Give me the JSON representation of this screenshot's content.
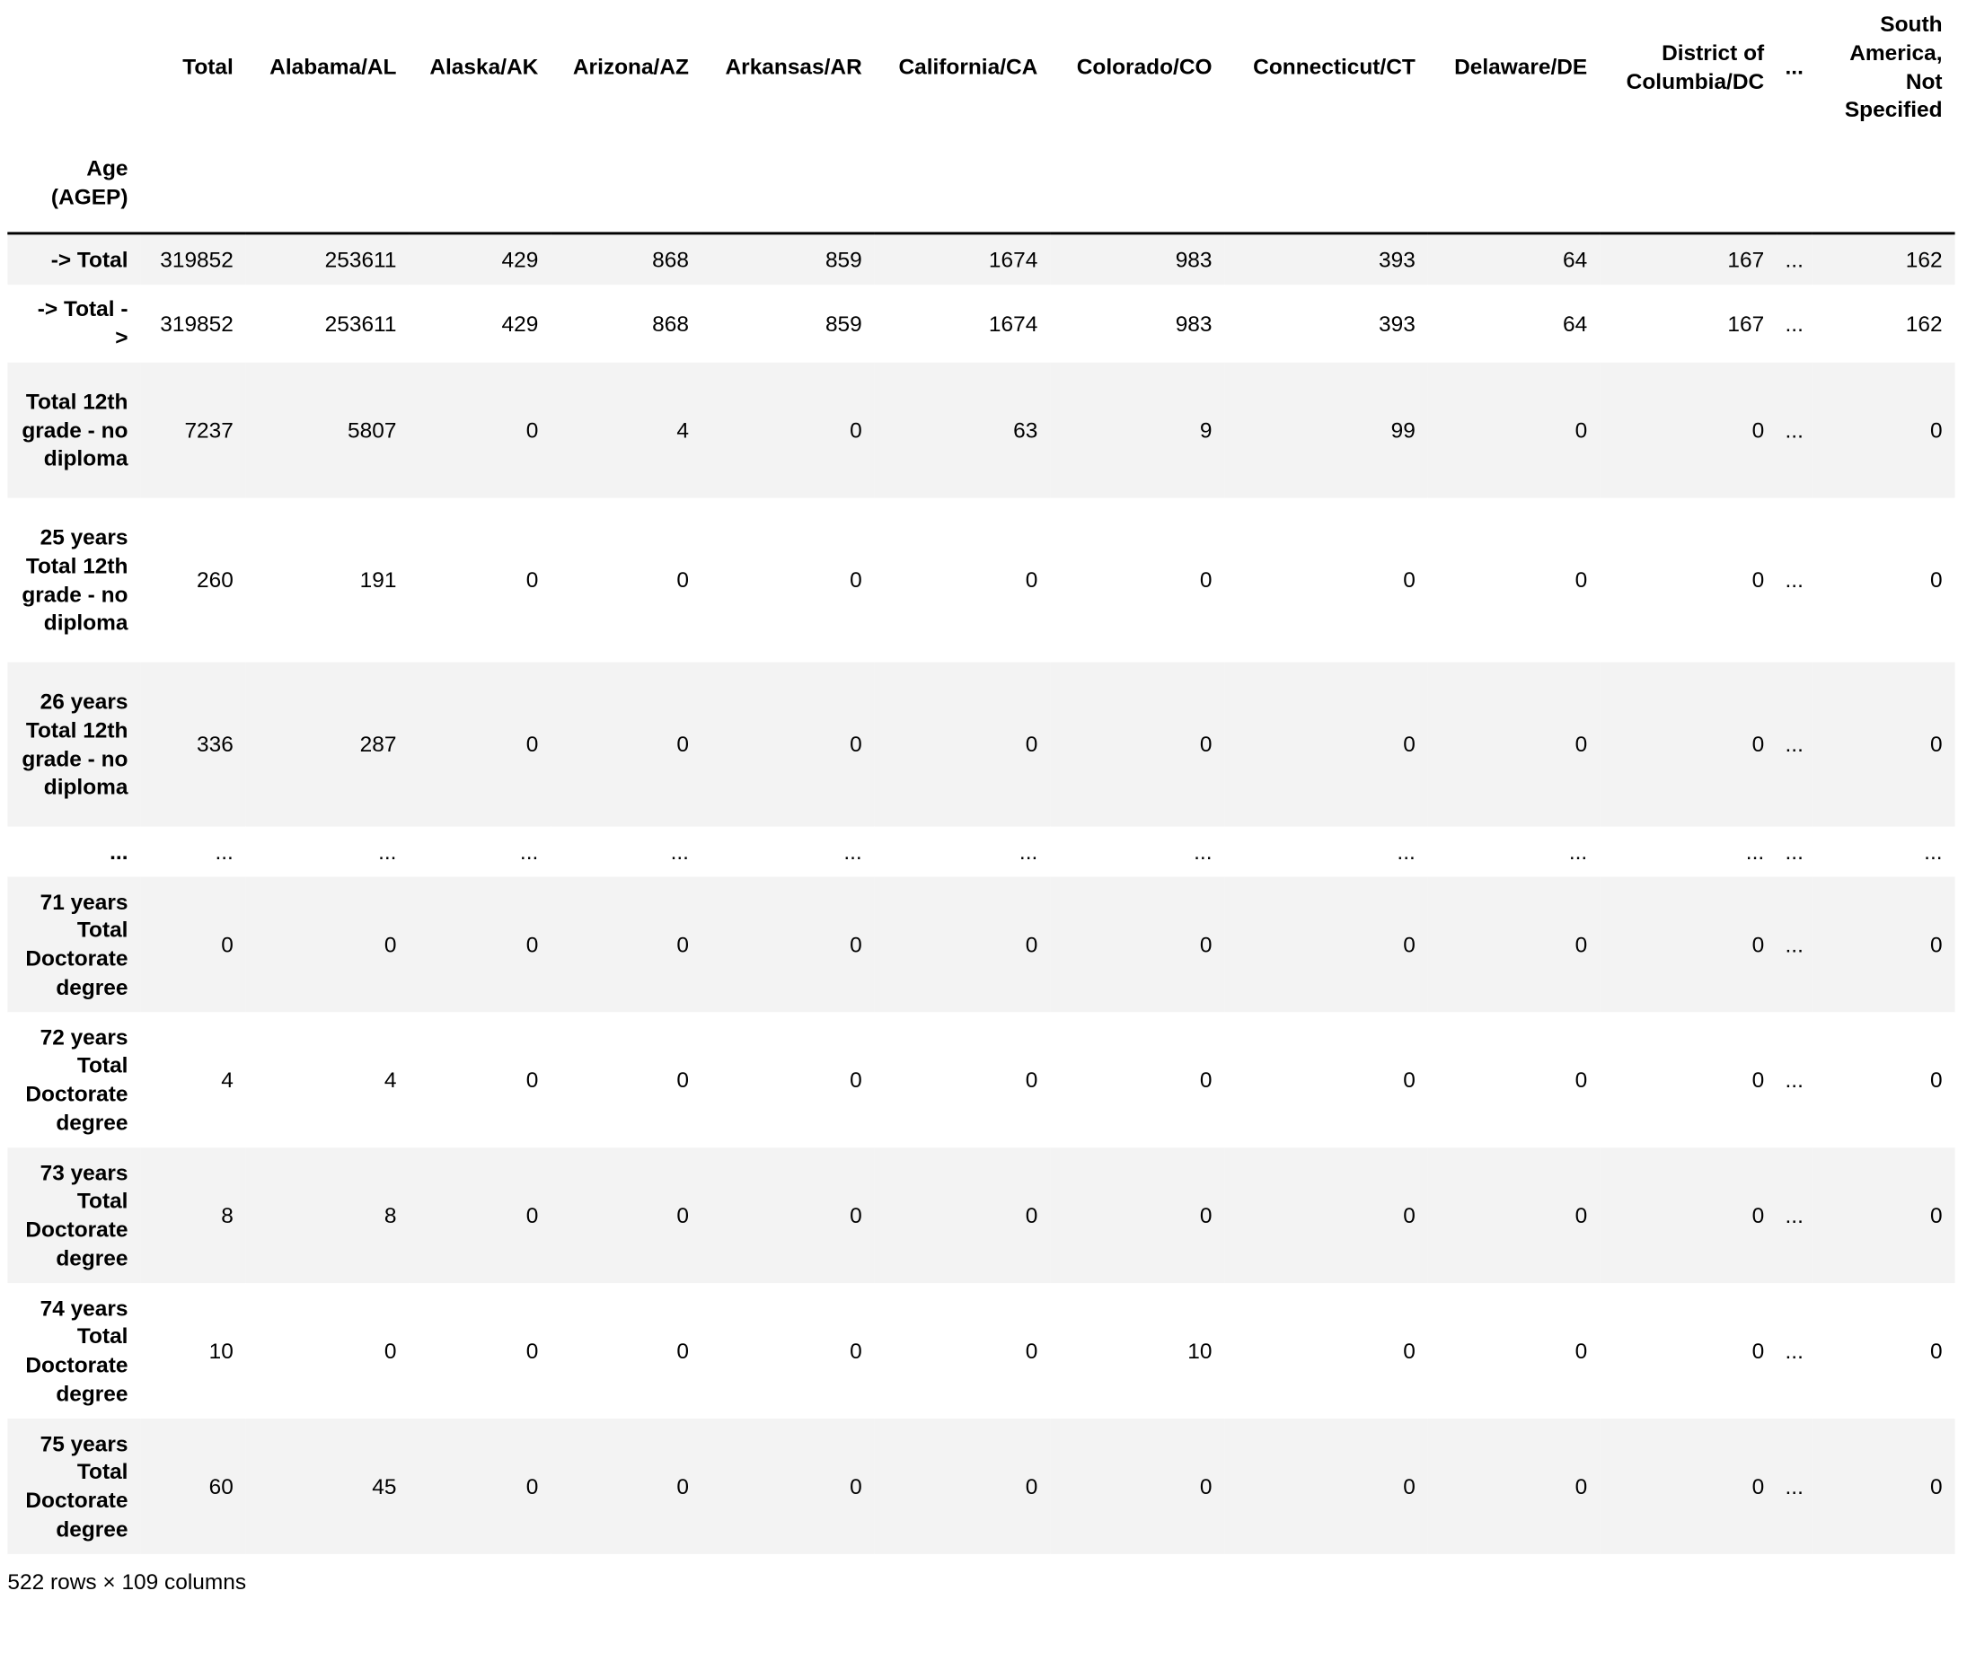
{
  "table": {
    "columns": [
      "Total",
      "Alabama/AL",
      "Alaska/AK",
      "Arizona/AZ",
      "Arkansas/AR",
      "California/CA",
      "Colorado/CO",
      "Connecticut/CT",
      "Delaware/DE",
      "District of Columbia/DC",
      "...",
      "South America, Not Specified"
    ],
    "index_name": "Age (AGEP)",
    "rows": [
      {
        "label": "-> Total",
        "values": [
          "319852",
          "253611",
          "429",
          "868",
          "859",
          "1674",
          "983",
          "393",
          "64",
          "167",
          "...",
          "162"
        ]
      },
      {
        "label": "-> Total - >",
        "values": [
          "319852",
          "253611",
          "429",
          "868",
          "859",
          "1674",
          "983",
          "393",
          "64",
          "167",
          "...",
          "162"
        ]
      },
      {
        "label": "Total 12th grade - no diploma",
        "values": [
          "7237",
          "5807",
          "0",
          "4",
          "0",
          "63",
          "9",
          "99",
          "0",
          "0",
          "...",
          "0"
        ]
      },
      {
        "label": "25 years Total 12th grade - no diploma",
        "values": [
          "260",
          "191",
          "0",
          "0",
          "0",
          "0",
          "0",
          "0",
          "0",
          "0",
          "...",
          "0"
        ]
      },
      {
        "label": "26 years Total 12th grade - no diploma",
        "values": [
          "336",
          "287",
          "0",
          "0",
          "0",
          "0",
          "0",
          "0",
          "0",
          "0",
          "...",
          "0"
        ]
      },
      {
        "label": "...",
        "values": [
          "...",
          "...",
          "...",
          "...",
          "...",
          "...",
          "...",
          "...",
          "...",
          "...",
          "...",
          "..."
        ]
      },
      {
        "label": "71 years Total Doctorate degree",
        "values": [
          "0",
          "0",
          "0",
          "0",
          "0",
          "0",
          "0",
          "0",
          "0",
          "0",
          "...",
          "0"
        ]
      },
      {
        "label": "72 years Total Doctorate degree",
        "values": [
          "4",
          "4",
          "0",
          "0",
          "0",
          "0",
          "0",
          "0",
          "0",
          "0",
          "...",
          "0"
        ]
      },
      {
        "label": "73 years Total Doctorate degree",
        "values": [
          "8",
          "8",
          "0",
          "0",
          "0",
          "0",
          "0",
          "0",
          "0",
          "0",
          "...",
          "0"
        ]
      },
      {
        "label": "74 years Total Doctorate degree",
        "values": [
          "10",
          "0",
          "0",
          "0",
          "0",
          "0",
          "10",
          "0",
          "0",
          "0",
          "...",
          "0"
        ]
      },
      {
        "label": "75 years Total Doctorate degree",
        "values": [
          "60",
          "45",
          "0",
          "0",
          "0",
          "0",
          "0",
          "0",
          "0",
          "0",
          "...",
          "0"
        ]
      }
    ],
    "shape_text": "522 rows × 109 columns"
  }
}
